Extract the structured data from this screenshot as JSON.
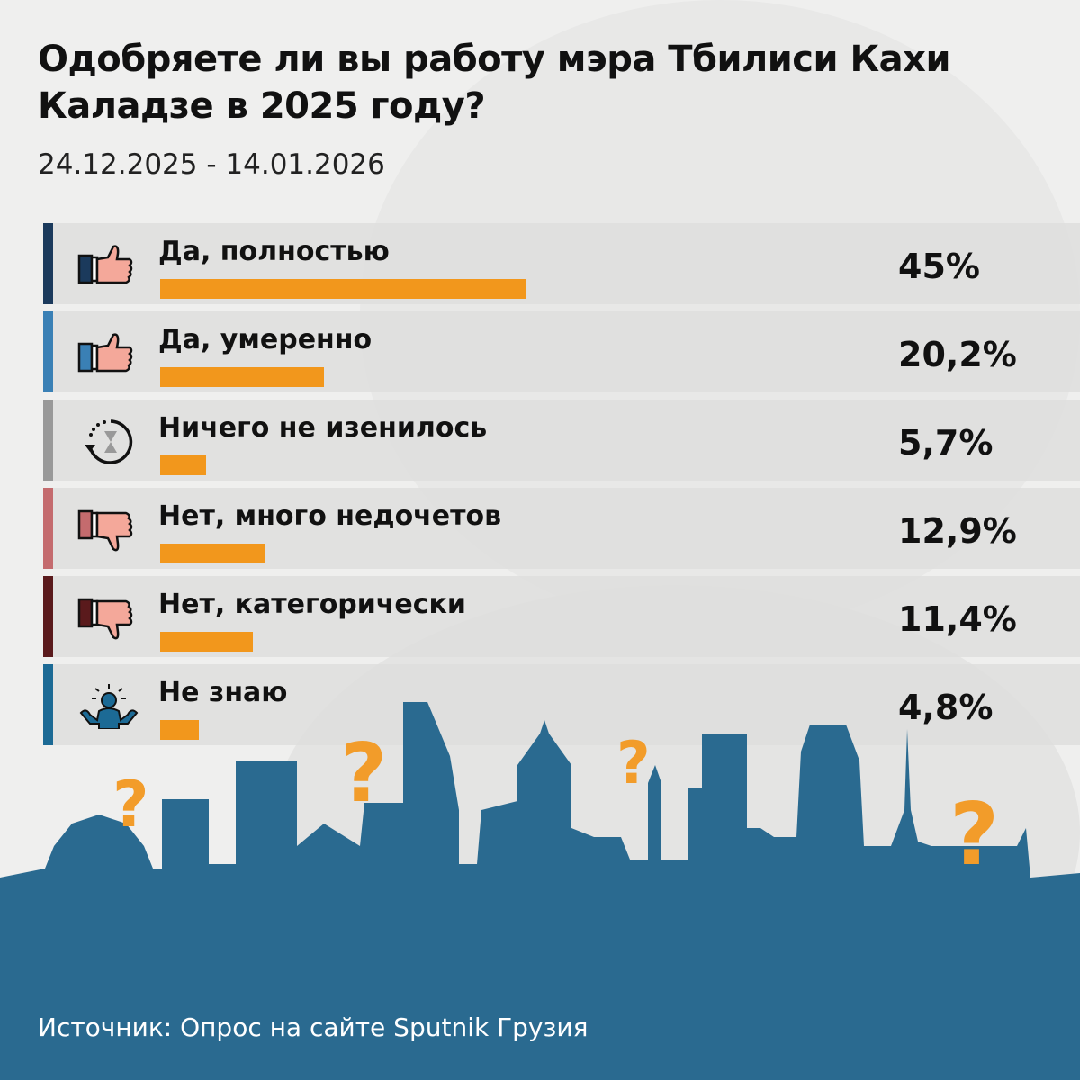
{
  "header": {
    "title": "Одобряете ли вы работу мэра Тбилиси Кахи Каладзе в 2025 году?",
    "date_range": "24.12.2025 - 14.01.2026"
  },
  "chart_data": {
    "type": "bar",
    "title": "Одобряете ли вы работу мэра Тбилиси Кахи Каладзе в 2025 году?",
    "subtitle": "24.12.2025 - 14.01.2026",
    "orientation": "horizontal",
    "categories": [
      "Да, полностью",
      "Да, умеренно",
      "Ничего не изенилось",
      "Нет, много недочетов",
      "Нет, категорически",
      "Не знаю"
    ],
    "values": [
      45,
      20.2,
      5.7,
      12.9,
      11.4,
      4.8
    ],
    "value_labels": [
      "45%",
      "20,2%",
      "5,7%",
      "12,9%",
      "11,4%",
      "4,8%"
    ],
    "icons": [
      "thumbs-up-icon",
      "thumbs-up-icon",
      "hourglass-cycle-icon",
      "thumbs-down-icon",
      "thumbs-down-icon",
      "shrug-person-icon"
    ],
    "stripe_colors": [
      "#1b3a5c",
      "#3a80b5",
      "#999999",
      "#c46b6e",
      "#5a1a1c",
      "#1c6a95"
    ],
    "bar_color": "#f2971c",
    "unit": "%"
  },
  "footer": {
    "source": "Источник: Опрос на сайте Sputnik Грузия"
  },
  "colors": {
    "skyline": "#2a6a90",
    "accent": "#f2971c"
  }
}
